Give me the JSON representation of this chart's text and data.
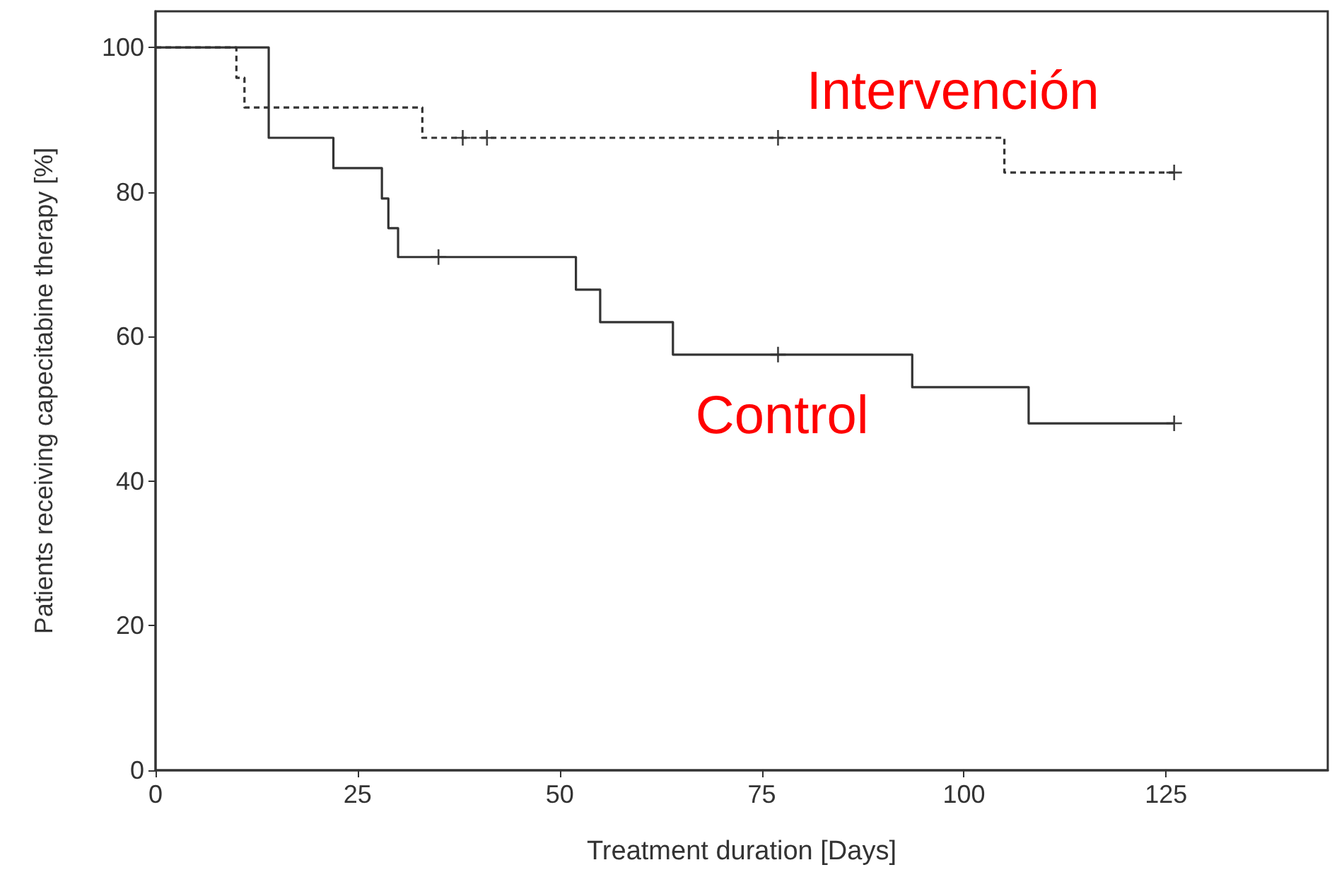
{
  "chart_data": {
    "type": "step",
    "xlabel": "Treatment duration [Days]",
    "ylabel": "Patients receiving capecitabine therapy [%]",
    "xlim": [
      0,
      145
    ],
    "ylim": [
      0,
      105
    ],
    "xticks": [
      0,
      25,
      50,
      75,
      100,
      125
    ],
    "yticks": [
      0,
      20,
      40,
      60,
      80,
      100
    ],
    "grid": false,
    "legend": false,
    "series": [
      {
        "name": "Intervención",
        "color": "#333333",
        "line_style": "dashed",
        "marker": "none",
        "x": [
          0,
          10,
          11,
          33,
          105,
          126
        ],
        "values": [
          100,
          95.8,
          91.7,
          87.5,
          82.7,
          82.7
        ]
      },
      {
        "name": "Control",
        "color": "#333333",
        "line_style": "solid",
        "marker": "none",
        "x": [
          0,
          14,
          22,
          28,
          28.8,
          30,
          52,
          55,
          64,
          93.6,
          108,
          126
        ],
        "values": [
          100,
          87.5,
          83.3,
          79.1,
          75,
          71,
          66.5,
          62,
          57.5,
          53,
          48,
          48
        ]
      },
      {
        "type": "scatter",
        "color": "#111111",
        "marker": "cross",
        "x": [
          38,
          41,
          77,
          126
        ],
        "values": [
          87.5,
          87.5,
          87.5,
          82.7
        ]
      },
      {
        "type": "scatter",
        "color": "#111111",
        "marker": "cross",
        "x": [
          35,
          77,
          126
        ],
        "values": [
          71,
          57.5,
          48
        ]
      }
    ]
  }
}
